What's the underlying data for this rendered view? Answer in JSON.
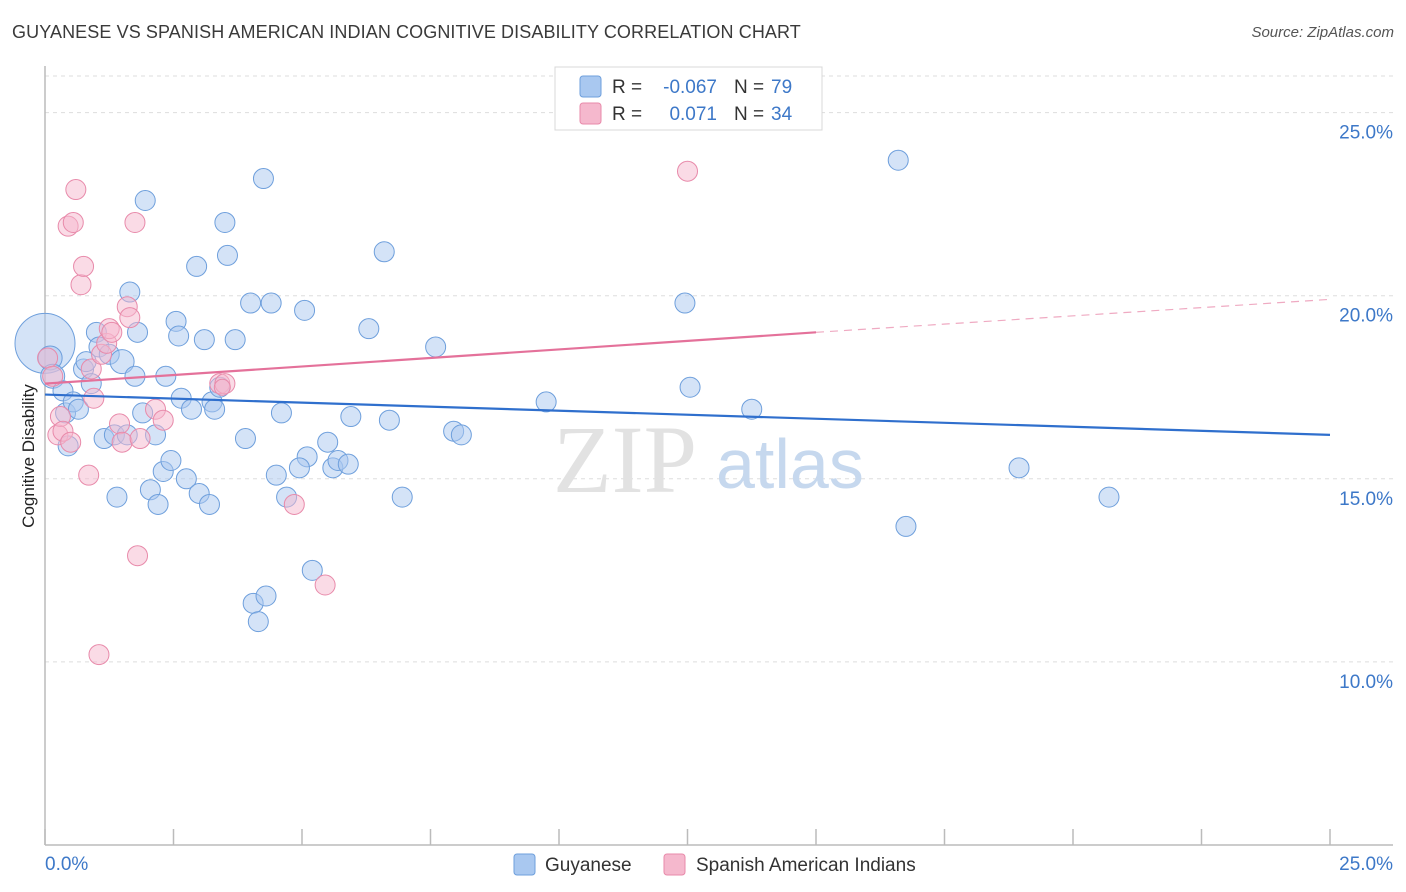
{
  "header": {
    "title": "GUYANESE VS SPANISH AMERICAN INDIAN COGNITIVE DISABILITY CORRELATION CHART",
    "source": "Source: ZipAtlas.com"
  },
  "watermark": {
    "zip": "ZIP",
    "atlas": "atlas"
  },
  "legend_top": {
    "rows": [
      {
        "r_label": "R =",
        "r_value": "-0.067",
        "n_label": "N =",
        "n_value": "79",
        "color": "#a9c8f0"
      },
      {
        "r_label": "R =",
        "r_value": "0.071",
        "n_label": "N =",
        "n_value": "34",
        "color": "#f5b8cd"
      }
    ]
  },
  "legend_bottom": {
    "items": [
      {
        "label": "Guyanese",
        "color": "#a9c8f0"
      },
      {
        "label": "Spanish American Indians",
        "color": "#f5b8cd"
      }
    ]
  },
  "chart_data": {
    "type": "scatter",
    "ylabel": "Cognitive Disability",
    "xlim": [
      0,
      25
    ],
    "ylim": [
      5,
      26
    ],
    "x_tick_labels": [
      "0.0%",
      "25.0%"
    ],
    "y_ticks": [
      {
        "value": 25,
        "label": "25.0%"
      },
      {
        "value": 20,
        "label": "20.0%"
      },
      {
        "value": 15,
        "label": "15.0%"
      },
      {
        "value": 10,
        "label": "10.0%"
      }
    ],
    "grid": true,
    "series": [
      {
        "name": "Guyanese",
        "color": "#a9c8f0",
        "stroke": "#6e9fdc",
        "trend": {
          "x": [
            0,
            25
          ],
          "y": [
            17.3,
            16.2
          ],
          "color": "#2f6fcd"
        },
        "points": [
          [
            0.0,
            18.7,
            30
          ],
          [
            0.1,
            18.3,
            12
          ],
          [
            0.15,
            17.8,
            12
          ],
          [
            0.35,
            17.4,
            10
          ],
          [
            0.4,
            16.8,
            10
          ],
          [
            0.45,
            15.9,
            10
          ],
          [
            0.55,
            17.1,
            10
          ],
          [
            0.65,
            16.9,
            10
          ],
          [
            0.75,
            18.0,
            10
          ],
          [
            0.8,
            18.2,
            10
          ],
          [
            0.9,
            17.6,
            10
          ],
          [
            1.0,
            19.0,
            10
          ],
          [
            1.05,
            18.6,
            10
          ],
          [
            1.15,
            16.1,
            10
          ],
          [
            1.25,
            18.4,
            10
          ],
          [
            1.35,
            16.2,
            10
          ],
          [
            1.4,
            14.5,
            10
          ],
          [
            1.5,
            18.2,
            12
          ],
          [
            1.6,
            16.2,
            10
          ],
          [
            1.65,
            20.1,
            10
          ],
          [
            1.75,
            17.8,
            10
          ],
          [
            1.8,
            19.0,
            10
          ],
          [
            1.9,
            16.8,
            10
          ],
          [
            1.95,
            22.6,
            10
          ],
          [
            2.05,
            14.7,
            10
          ],
          [
            2.15,
            16.2,
            10
          ],
          [
            2.2,
            14.3,
            10
          ],
          [
            2.3,
            15.2,
            10
          ],
          [
            2.35,
            17.8,
            10
          ],
          [
            2.45,
            15.5,
            10
          ],
          [
            2.55,
            19.3,
            10
          ],
          [
            2.6,
            18.9,
            10
          ],
          [
            2.65,
            17.2,
            10
          ],
          [
            2.75,
            15.0,
            10
          ],
          [
            2.85,
            16.9,
            10
          ],
          [
            2.95,
            20.8,
            10
          ],
          [
            3.0,
            14.6,
            10
          ],
          [
            3.1,
            18.8,
            10
          ],
          [
            3.2,
            14.3,
            10
          ],
          [
            3.25,
            17.1,
            10
          ],
          [
            3.3,
            16.9,
            10
          ],
          [
            3.4,
            17.5,
            10
          ],
          [
            3.5,
            22.0,
            10
          ],
          [
            3.55,
            21.1,
            10
          ],
          [
            3.7,
            18.8,
            10
          ],
          [
            3.9,
            16.1,
            10
          ],
          [
            4.0,
            19.8,
            10
          ],
          [
            4.05,
            11.6,
            10
          ],
          [
            4.15,
            11.1,
            10
          ],
          [
            4.25,
            23.2,
            10
          ],
          [
            4.3,
            11.8,
            10
          ],
          [
            4.4,
            19.8,
            10
          ],
          [
            4.5,
            15.1,
            10
          ],
          [
            4.6,
            16.8,
            10
          ],
          [
            4.7,
            14.5,
            10
          ],
          [
            5.05,
            19.6,
            10
          ],
          [
            5.1,
            15.6,
            10
          ],
          [
            5.2,
            12.5,
            10
          ],
          [
            4.95,
            15.3,
            10
          ],
          [
            5.5,
            16.0,
            10
          ],
          [
            5.6,
            15.3,
            10
          ],
          [
            5.7,
            15.5,
            10
          ],
          [
            5.9,
            15.4,
            10
          ],
          [
            5.95,
            16.7,
            10
          ],
          [
            6.3,
            19.1,
            10
          ],
          [
            6.6,
            21.2,
            10
          ],
          [
            6.7,
            16.6,
            10
          ],
          [
            6.95,
            14.5,
            10
          ],
          [
            7.6,
            18.6,
            10
          ],
          [
            7.95,
            16.3,
            10
          ],
          [
            8.1,
            16.2,
            10
          ],
          [
            9.75,
            17.1,
            10
          ],
          [
            12.45,
            19.8,
            10
          ],
          [
            12.55,
            17.5,
            10
          ],
          [
            13.75,
            16.9,
            10
          ],
          [
            16.6,
            23.7,
            10
          ],
          [
            16.75,
            13.7,
            10
          ],
          [
            18.95,
            15.3,
            10
          ],
          [
            20.7,
            14.5,
            10
          ]
        ]
      },
      {
        "name": "Spanish American Indians",
        "color": "#f5b8cd",
        "stroke": "#e88aaa",
        "trend": {
          "x": [
            0,
            15
          ],
          "y": [
            17.6,
            19.0
          ],
          "color": "#e4719a",
          "dashed_to": [
            25,
            19.9
          ]
        },
        "points": [
          [
            0.05,
            18.3,
            10
          ],
          [
            0.15,
            17.8,
            10
          ],
          [
            0.25,
            16.2,
            10
          ],
          [
            0.3,
            16.7,
            10
          ],
          [
            0.35,
            16.3,
            10
          ],
          [
            0.45,
            21.9,
            10
          ],
          [
            0.5,
            16.0,
            10
          ],
          [
            0.55,
            22.0,
            10
          ],
          [
            0.6,
            22.9,
            10
          ],
          [
            0.7,
            20.3,
            10
          ],
          [
            0.75,
            20.8,
            10
          ],
          [
            0.85,
            15.1,
            10
          ],
          [
            0.9,
            18.0,
            10
          ],
          [
            0.95,
            17.2,
            10
          ],
          [
            1.05,
            10.2,
            10
          ],
          [
            1.1,
            18.4,
            10
          ],
          [
            1.2,
            18.7,
            10
          ],
          [
            1.25,
            19.1,
            10
          ],
          [
            1.3,
            19.0,
            10
          ],
          [
            1.45,
            16.5,
            10
          ],
          [
            1.5,
            16.0,
            10
          ],
          [
            1.6,
            19.7,
            10
          ],
          [
            1.65,
            19.4,
            10
          ],
          [
            1.75,
            22.0,
            10
          ],
          [
            1.8,
            12.9,
            10
          ],
          [
            1.85,
            16.1,
            10
          ],
          [
            2.15,
            16.9,
            10
          ],
          [
            2.3,
            16.6,
            10
          ],
          [
            3.4,
            17.6,
            10
          ],
          [
            3.5,
            17.6,
            10
          ],
          [
            4.85,
            14.3,
            10
          ],
          [
            5.45,
            12.1,
            10
          ],
          [
            12.5,
            23.4,
            10
          ],
          [
            3.45,
            17.5,
            8
          ]
        ]
      }
    ]
  }
}
